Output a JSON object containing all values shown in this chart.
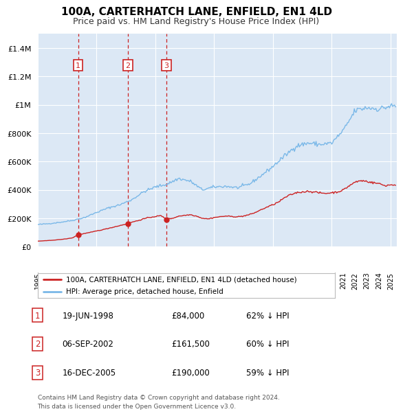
{
  "title": "100A, CARTERHATCH LANE, ENFIELD, EN1 4LD",
  "subtitle": "Price paid vs. HM Land Registry's House Price Index (HPI)",
  "footer": "Contains HM Land Registry data © Crown copyright and database right 2024.\nThis data is licensed under the Open Government Licence v3.0.",
  "legend_line1": "100A, CARTERHATCH LANE, ENFIELD, EN1 4LD (detached house)",
  "legend_line2": "HPI: Average price, detached house, Enfield",
  "transactions": [
    {
      "label": "1",
      "date": "19-JUN-1998",
      "price": "£84,000",
      "hpi_pct": "62% ↓ HPI",
      "year": 1998.46
    },
    {
      "label": "2",
      "date": "06-SEP-2002",
      "price": "£161,500",
      "hpi_pct": "60% ↓ HPI",
      "year": 2002.68
    },
    {
      "label": "3",
      "date": "16-DEC-2005",
      "price": "£190,000",
      "hpi_pct": "59% ↓ HPI",
      "year": 2005.96
    }
  ],
  "transaction_values": [
    84000,
    161500,
    190000
  ],
  "hpi_line_color": "#7ab8e8",
  "price_line_color": "#cc2222",
  "vline_color": "#cc2222",
  "plot_bg": "#dce8f5",
  "grid_color": "#ffffff",
  "ylim": [
    0,
    1500000
  ],
  "yticks": [
    0,
    200000,
    400000,
    600000,
    800000,
    1000000,
    1200000,
    1400000
  ],
  "xmin": 1995,
  "xmax": 2025.5
}
